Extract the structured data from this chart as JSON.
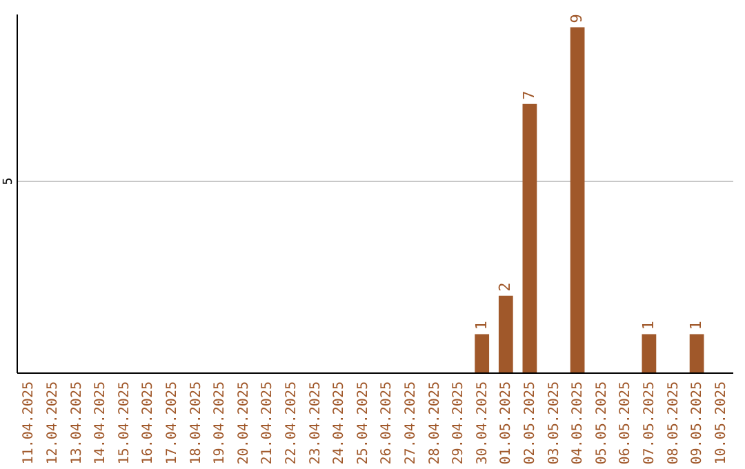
{
  "chart_data": {
    "type": "bar",
    "categories": [
      "11.04.2025",
      "12.04.2025",
      "13.04.2025",
      "14.04.2025",
      "15.04.2025",
      "16.04.2025",
      "17.04.2025",
      "18.04.2025",
      "19.04.2025",
      "20.04.2025",
      "21.04.2025",
      "22.04.2025",
      "23.04.2025",
      "24.04.2025",
      "25.04.2025",
      "26.04.2025",
      "27.04.2025",
      "28.04.2025",
      "29.04.2025",
      "30.04.2025",
      "01.05.2025",
      "02.05.2025",
      "03.05.2025",
      "04.05.2025",
      "05.05.2025",
      "06.05.2025",
      "07.05.2025",
      "08.05.2025",
      "09.05.2025",
      "10.05.2025"
    ],
    "values": [
      null,
      null,
      null,
      null,
      null,
      null,
      null,
      null,
      null,
      null,
      null,
      null,
      null,
      null,
      null,
      null,
      null,
      null,
      null,
      1,
      2,
      7,
      null,
      9,
      null,
      null,
      1,
      null,
      1,
      null
    ],
    "color": "#a0582a",
    "ylim": [
      0,
      9.35
    ],
    "yticks": [
      5
    ],
    "grid": "y",
    "data_labels": true
  }
}
